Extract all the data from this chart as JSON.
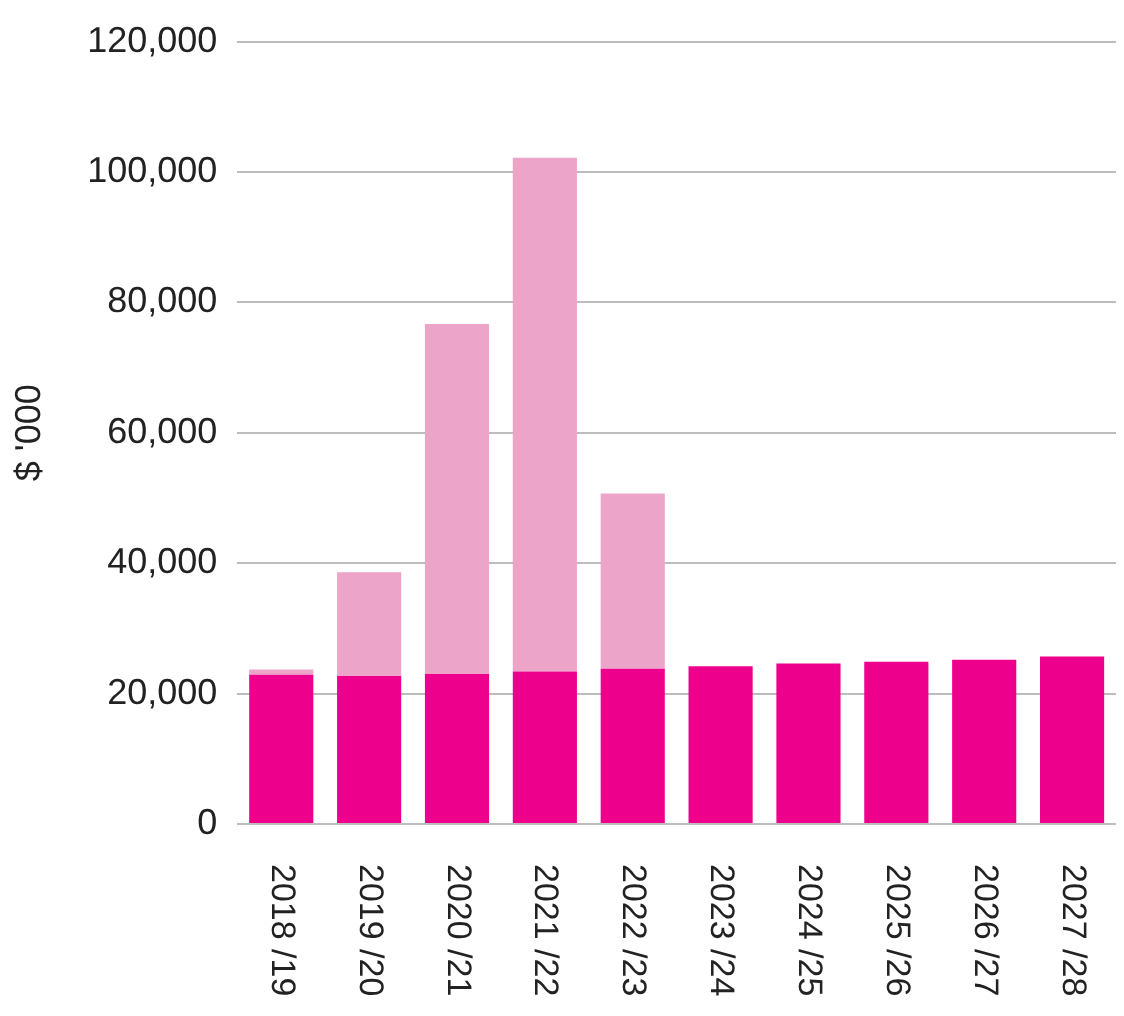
{
  "chart_data": {
    "type": "bar",
    "ylabel": "$ '000",
    "categories": [
      "2018 /19",
      "2019 /20",
      "2020 /21",
      "2021 /22",
      "2022 /23",
      "2023 /24",
      "2024 /25",
      "2025 /26",
      "2026 /27",
      "2027 /28"
    ],
    "series": [
      {
        "color": "#ec008c",
        "values": [
          22900,
          22700,
          23000,
          23400,
          23800,
          24200,
          24600,
          24900,
          25200,
          25700
        ]
      },
      {
        "color": "#eda4c9",
        "values": [
          800,
          15900,
          53700,
          78800,
          26900,
          null,
          null,
          null,
          null,
          null
        ]
      }
    ],
    "stacked": true,
    "ylim": [
      0,
      120000
    ],
    "yticks": [
      0,
      {
        "value": 20000,
        "label": "20,000"
      },
      {
        "value": 40000,
        "label": "40,000"
      },
      {
        "value": 60000,
        "label": "60,000"
      },
      {
        "value": 80000,
        "label": "80,000"
      },
      {
        "value": 100000,
        "label": "100,000"
      },
      {
        "value": 120000,
        "label": "120,000"
      }
    ],
    "grid": "y"
  }
}
